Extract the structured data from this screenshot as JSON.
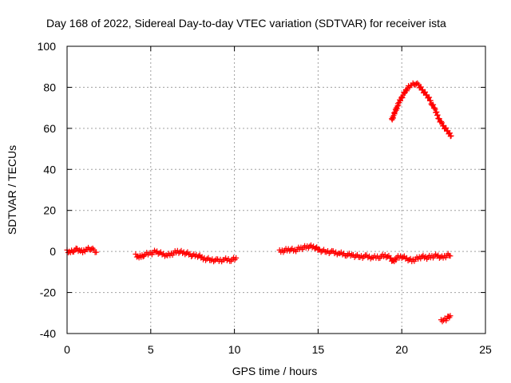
{
  "chart_data": {
    "type": "scatter",
    "title": "Day 168 of 2022, Sidereal Day-to-day VTEC variation (SDTVAR) for receiver ista",
    "xlabel": "GPS time / hours",
    "ylabel": "SDTVAR / TECUs",
    "xlim": [
      0,
      25
    ],
    "ylim": [
      -40,
      100
    ],
    "xticks": [
      0,
      5,
      10,
      15,
      20,
      25
    ],
    "yticks": [
      -40,
      -20,
      0,
      20,
      40,
      60,
      80,
      100
    ],
    "grid": true,
    "marker": "plus",
    "color": "#ff0000",
    "series": [
      {
        "name": "SDTVAR",
        "segments": [
          {
            "x": [
              0.0,
              0.2,
              0.4,
              0.6,
              0.8,
              1.0,
              1.2,
              1.4,
              1.6,
              1.75
            ],
            "y": [
              0.0,
              -0.5,
              0.5,
              1.0,
              0.5,
              0.0,
              1.0,
              1.5,
              0.5,
              0.0
            ]
          },
          {
            "x": [
              4.1,
              4.3,
              4.6,
              5.0,
              5.3,
              5.6,
              6.0,
              6.3,
              6.6,
              6.9,
              7.2,
              7.5,
              7.8,
              8.2,
              8.6,
              9.0,
              9.4,
              9.8,
              10.1
            ],
            "y": [
              -2.0,
              -3.0,
              -1.5,
              -1.0,
              0.0,
              -1.0,
              -2.0,
              -1.0,
              0.0,
              -0.5,
              -1.0,
              -2.0,
              -2.0,
              -3.5,
              -4.0,
              -4.5,
              -4.0,
              -4.0,
              -3.5
            ]
          },
          {
            "x": [
              12.7,
              13.0,
              13.3,
              13.6,
              13.9,
              14.2,
              14.5,
              14.8,
              15.1,
              15.5,
              15.9,
              16.3,
              16.7,
              17.1,
              17.5,
              17.9,
              18.3,
              18.7,
              19.0,
              19.3,
              19.5,
              19.7,
              20.0,
              20.3,
              20.6,
              20.9,
              21.2,
              21.5,
              21.8,
              22.1,
              22.4,
              22.7,
              22.9
            ],
            "y": [
              0.0,
              0.5,
              1.0,
              0.5,
              1.5,
              2.0,
              2.5,
              2.0,
              0.5,
              0.0,
              -0.5,
              -1.0,
              -1.5,
              -2.0,
              -2.5,
              -2.5,
              -3.0,
              -2.5,
              -2.0,
              -3.0,
              -5.0,
              -3.0,
              -2.5,
              -3.5,
              -4.5,
              -3.5,
              -2.5,
              -3.0,
              -2.5,
              -2.0,
              -3.0,
              -2.0,
              -1.5
            ]
          },
          {
            "x": [
              19.4,
              19.6,
              19.8,
              20.0,
              20.2,
              20.4,
              20.6,
              20.8,
              21.0,
              21.2,
              21.4,
              21.6,
              21.8,
              22.0,
              22.2,
              22.4,
              22.6,
              22.8,
              22.95
            ],
            "y": [
              64,
              68,
              72,
              75,
              78,
              80,
              81,
              82,
              81,
              79,
              77,
              75,
              72,
              69,
              65,
              62,
              60,
              58,
              56
            ]
          },
          {
            "x": [
              22.35,
              22.5,
              22.65,
              22.8,
              22.9
            ],
            "y": [
              -34,
              -33.5,
              -33,
              -32,
              -31
            ]
          }
        ]
      }
    ]
  }
}
